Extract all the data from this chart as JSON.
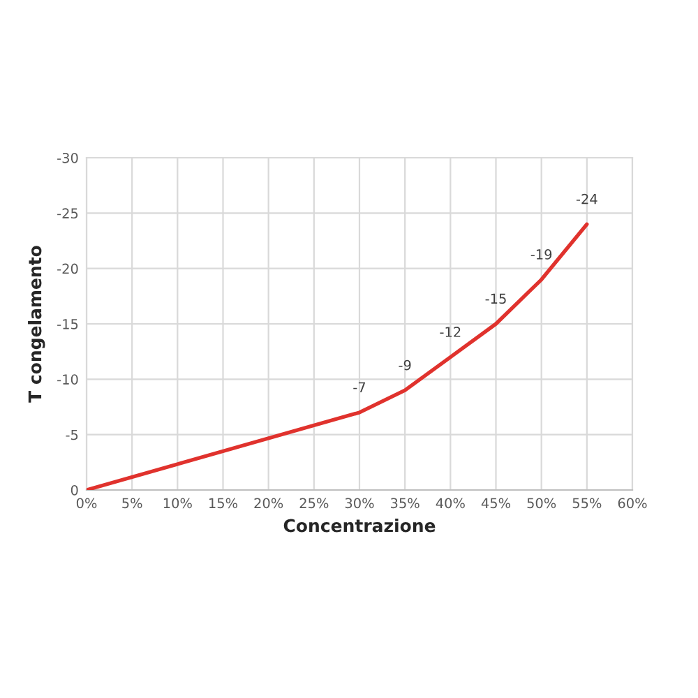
{
  "chart_data": {
    "type": "line",
    "xlabel": "Concentrazione",
    "ylabel": "T congelamento",
    "x": [
      0,
      30,
      35,
      40,
      45,
      50,
      55
    ],
    "series": [
      {
        "color": "#e0322d",
        "values": [
          0,
          -7,
          -9,
          -12,
          -15,
          -19,
          -24
        ],
        "value_labels": [
          null,
          "-7",
          "-9",
          "-12",
          "-15",
          "-19",
          "-24"
        ]
      }
    ],
    "xlim": [
      0,
      60
    ],
    "xticks": [
      {
        "value": 0,
        "label": "0%"
      },
      {
        "value": 5,
        "label": "5%"
      },
      {
        "value": 10,
        "label": "10%"
      },
      {
        "value": 15,
        "label": "15%"
      },
      {
        "value": 20,
        "label": "20%"
      },
      {
        "value": 25,
        "label": "25%"
      },
      {
        "value": 30,
        "label": "30%"
      },
      {
        "value": 35,
        "label": "35%"
      },
      {
        "value": 40,
        "label": "40%"
      },
      {
        "value": 45,
        "label": "45%"
      },
      {
        "value": 50,
        "label": "50%"
      },
      {
        "value": 55,
        "label": "55%"
      },
      {
        "value": 60,
        "label": "60%"
      }
    ],
    "ylim": [
      0,
      -30
    ],
    "yticks": [
      0,
      -5,
      -10,
      -15,
      -20,
      -25,
      -30
    ],
    "grid": true,
    "legend": false,
    "marker": "none",
    "line_style": "solid"
  }
}
